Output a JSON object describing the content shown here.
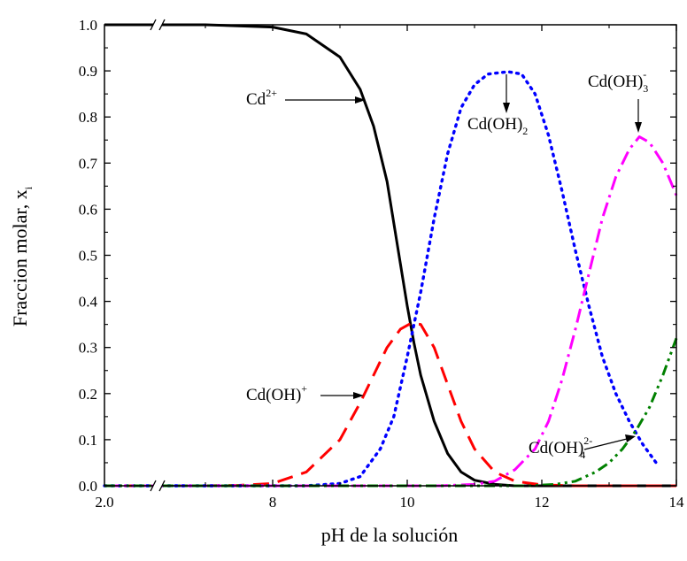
{
  "chart_data": {
    "type": "line",
    "title": "",
    "xlabel": "pH de la solución",
    "ylabel": "Fraccion molar, x",
    "ylabel_sub": "i",
    "xlim": [
      6,
      14
    ],
    "ylim": [
      0,
      1
    ],
    "axis_break": {
      "shown_label": "2.0",
      "break_between": [
        2.0,
        7.0
      ]
    },
    "x_ticks": [
      {
        "value": 8,
        "label": "8"
      },
      {
        "value": 10,
        "label": "10"
      },
      {
        "value": 12,
        "label": "12"
      },
      {
        "value": 14,
        "label": "14"
      }
    ],
    "x_start_label": "2.0",
    "y_ticks": [
      "0.0",
      "0.1",
      "0.2",
      "0.3",
      "0.4",
      "0.5",
      "0.6",
      "0.7",
      "0.8",
      "0.9",
      "1.0"
    ],
    "grid": false,
    "series": [
      {
        "name": "Cd2+",
        "style": "solid",
        "color": "#000000",
        "points": [
          [
            2.0,
            1.0
          ],
          [
            7.0,
            1.0
          ],
          [
            8.0,
            0.995
          ],
          [
            8.5,
            0.98
          ],
          [
            9.0,
            0.93
          ],
          [
            9.3,
            0.86
          ],
          [
            9.5,
            0.78
          ],
          [
            9.7,
            0.66
          ],
          [
            9.9,
            0.48
          ],
          [
            10.0,
            0.39
          ],
          [
            10.1,
            0.31
          ],
          [
            10.2,
            0.24
          ],
          [
            10.4,
            0.14
          ],
          [
            10.6,
            0.07
          ],
          [
            10.8,
            0.03
          ],
          [
            11.0,
            0.012
          ],
          [
            11.3,
            0.003
          ],
          [
            11.6,
            0.0
          ],
          [
            14.0,
            0.0
          ]
        ]
      },
      {
        "name": "Cd(OH)+",
        "style": "dashed",
        "color": "#ff0000",
        "points": [
          [
            2.0,
            0.0
          ],
          [
            7.0,
            0.0
          ],
          [
            7.5,
            0.001
          ],
          [
            8.0,
            0.005
          ],
          [
            8.5,
            0.03
          ],
          [
            9.0,
            0.1
          ],
          [
            9.3,
            0.18
          ],
          [
            9.5,
            0.24
          ],
          [
            9.7,
            0.3
          ],
          [
            9.9,
            0.34
          ],
          [
            10.05,
            0.352
          ],
          [
            10.2,
            0.35
          ],
          [
            10.4,
            0.3
          ],
          [
            10.6,
            0.22
          ],
          [
            10.8,
            0.14
          ],
          [
            11.0,
            0.08
          ],
          [
            11.3,
            0.03
          ],
          [
            11.6,
            0.01
          ],
          [
            12.0,
            0.002
          ],
          [
            12.5,
            0.0
          ],
          [
            14.0,
            0.0
          ]
        ]
      },
      {
        "name": "Cd(OH)2",
        "style": "dotted",
        "color": "#0000ff",
        "points": [
          [
            2.0,
            0.0
          ],
          [
            7.0,
            0.0
          ],
          [
            8.5,
            0.0
          ],
          [
            9.0,
            0.005
          ],
          [
            9.3,
            0.02
          ],
          [
            9.6,
            0.08
          ],
          [
            9.8,
            0.15
          ],
          [
            10.0,
            0.28
          ],
          [
            10.2,
            0.42
          ],
          [
            10.4,
            0.58
          ],
          [
            10.6,
            0.72
          ],
          [
            10.8,
            0.82
          ],
          [
            11.0,
            0.87
          ],
          [
            11.2,
            0.893
          ],
          [
            11.5,
            0.898
          ],
          [
            11.7,
            0.893
          ],
          [
            11.9,
            0.85
          ],
          [
            12.1,
            0.76
          ],
          [
            12.3,
            0.64
          ],
          [
            12.5,
            0.51
          ],
          [
            12.7,
            0.39
          ],
          [
            12.9,
            0.28
          ],
          [
            13.1,
            0.2
          ],
          [
            13.3,
            0.14
          ],
          [
            13.5,
            0.09
          ],
          [
            13.7,
            0.05
          ]
        ]
      },
      {
        "name": "Cd(OH)3-",
        "style": "dashdot",
        "color": "#ff00ff",
        "points": [
          [
            2.0,
            0.0
          ],
          [
            7.0,
            0.0
          ],
          [
            10.5,
            0.0
          ],
          [
            11.0,
            0.003
          ],
          [
            11.3,
            0.01
          ],
          [
            11.6,
            0.035
          ],
          [
            11.9,
            0.08
          ],
          [
            12.1,
            0.14
          ],
          [
            12.3,
            0.23
          ],
          [
            12.5,
            0.34
          ],
          [
            12.7,
            0.46
          ],
          [
            12.9,
            0.58
          ],
          [
            13.1,
            0.67
          ],
          [
            13.3,
            0.73
          ],
          [
            13.45,
            0.757
          ],
          [
            13.6,
            0.745
          ],
          [
            13.8,
            0.7
          ],
          [
            14.0,
            0.63
          ]
        ]
      },
      {
        "name": "Cd(OH)4 2-",
        "style": "dashdotdot",
        "color": "#008000",
        "points": [
          [
            2.0,
            0.0
          ],
          [
            7.0,
            0.0
          ],
          [
            11.8,
            0.0
          ],
          [
            12.2,
            0.003
          ],
          [
            12.5,
            0.01
          ],
          [
            12.8,
            0.03
          ],
          [
            13.0,
            0.05
          ],
          [
            13.2,
            0.08
          ],
          [
            13.4,
            0.12
          ],
          [
            13.6,
            0.17
          ],
          [
            13.8,
            0.24
          ],
          [
            14.0,
            0.32
          ]
        ]
      }
    ],
    "annotations": [
      {
        "base": "Cd",
        "sup": "2+",
        "sub": ""
      },
      {
        "base": "Cd(OH)",
        "sup": "",
        "sub": "2"
      },
      {
        "base": "Cd(OH)",
        "sup": "-",
        "sub": "3"
      },
      {
        "base": "Cd(OH)",
        "sup": "+",
        "sub": ""
      },
      {
        "base": "Cd(OH)",
        "sup": "2-",
        "sub": "4"
      }
    ]
  }
}
